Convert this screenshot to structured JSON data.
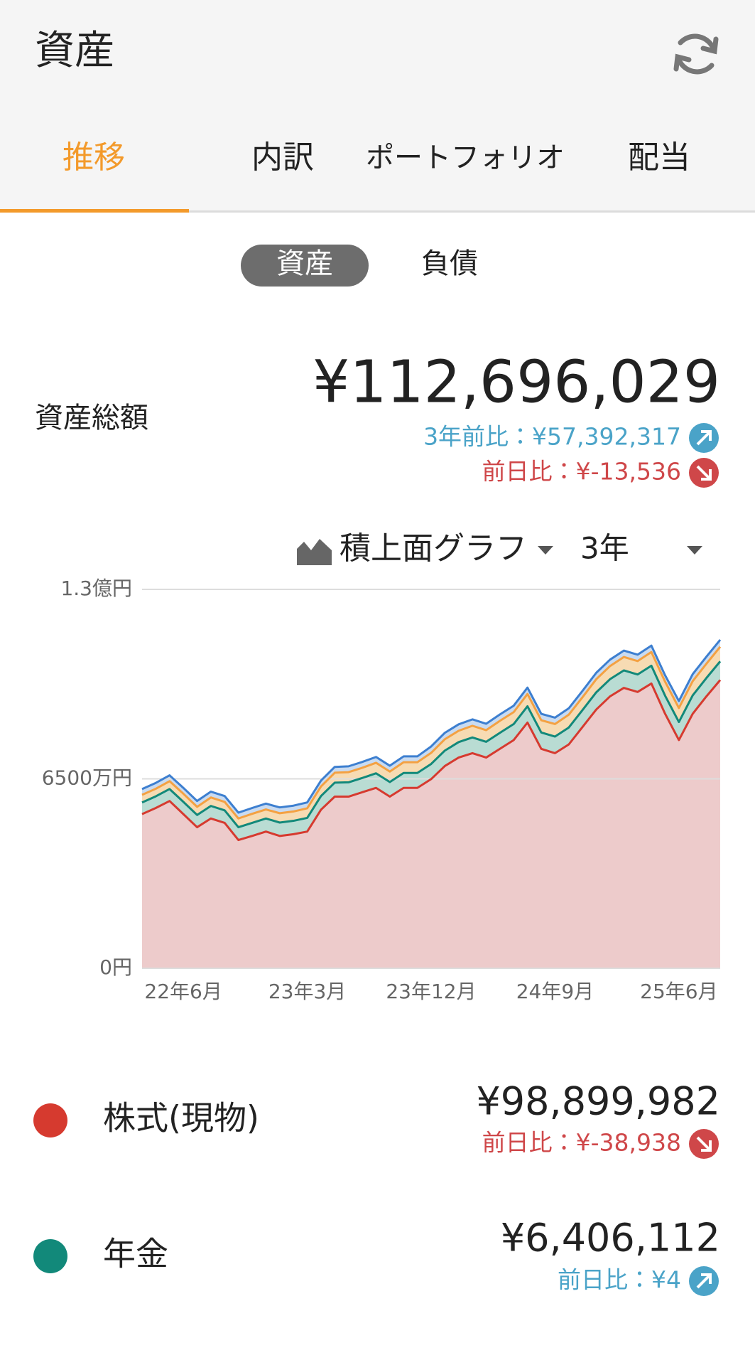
{
  "header": {
    "title": "資産"
  },
  "tabs": [
    "推移",
    "内訳",
    "ポートフォリオ",
    "配当"
  ],
  "toggle": [
    "資産",
    "負債"
  ],
  "total": {
    "label": "資産総額",
    "value": "¥112,696,029",
    "change_3y": "3年前比：¥57,392,317",
    "change_day": "前日比：¥-13,536"
  },
  "controls": {
    "chart_kind": "積上面グラフ",
    "period": "3年"
  },
  "chart_data": {
    "type": "stacked_area",
    "categories": [
      null,
      null,
      null,
      "22年6月",
      null,
      null,
      null,
      null,
      null,
      null,
      null,
      null,
      "23年3月",
      null,
      null,
      null,
      null,
      null,
      null,
      null,
      null,
      "23年12月",
      null,
      null,
      null,
      null,
      null,
      null,
      null,
      null,
      "24年9月",
      null,
      null,
      null,
      null,
      null,
      null,
      null,
      null,
      "25年6月",
      null,
      null,
      null
    ],
    "ylim": [
      0,
      130000000
    ],
    "yticks": [
      {
        "value": 0,
        "label": "0円"
      },
      {
        "value": 65000000,
        "label": "6500万円"
      },
      {
        "value": 130000000,
        "label": "1.3億円"
      }
    ],
    "grid": true,
    "series": [
      {
        "name": "株式(現物)",
        "color": "#d63a2f",
        "fill": "#edcbcb",
        "values": [
          52900000,
          55000000,
          57400000,
          52900000,
          48400000,
          51400000,
          49900000,
          44000000,
          45400000,
          46900000,
          45400000,
          46000000,
          46900000,
          54400000,
          58900000,
          58900000,
          60400000,
          61900000,
          58900000,
          61900000,
          61900000,
          64900000,
          69400000,
          72300000,
          73800000,
          72300000,
          75300000,
          78300000,
          84300000,
          75300000,
          73800000,
          76800000,
          82800000,
          88800000,
          93300000,
          96200000,
          94800000,
          97700000,
          87300000,
          78300000,
          87300000,
          93300000,
          98899982
        ]
      },
      {
        "name": "年金",
        "color": "#12897a",
        "fill": "#b9dcd3",
        "values": [
          4000000,
          4000000,
          4100000,
          4200000,
          4200000,
          4300000,
          4300000,
          4400000,
          4500000,
          4500000,
          4600000,
          4600000,
          4700000,
          4700000,
          4800000,
          4900000,
          4900000,
          5000000,
          5000000,
          5100000,
          5100000,
          5200000,
          5300000,
          5300000,
          5400000,
          5400000,
          5500000,
          5500000,
          5600000,
          5600000,
          5700000,
          5800000,
          5800000,
          5900000,
          5900000,
          6000000,
          6000000,
          6100000,
          6200000,
          6200000,
          6300000,
          6300000,
          6406112
        ]
      },
      {
        "color": "#f4a142",
        "fill": "#f7dbb3",
        "values": [
          2600000,
          2600000,
          2700000,
          2800000,
          2800000,
          2900000,
          2900000,
          3000000,
          3100000,
          3100000,
          3200000,
          3200000,
          3300000,
          3300000,
          3400000,
          3500000,
          3500000,
          3600000,
          3600000,
          3700000,
          3700000,
          3800000,
          3900000,
          3900000,
          4000000,
          4000000,
          4100000,
          4100000,
          4200000,
          4200000,
          4300000,
          4400000,
          4400000,
          4500000,
          4500000,
          4600000,
          4600000,
          4700000,
          4800000,
          4800000,
          4900000,
          4900000,
          5000000
        ]
      },
      {
        "color": "#3d7fd0",
        "fill": "#c9dbf1",
        "values": [
          2000000,
          2000000,
          2000000,
          2000000,
          2000000,
          2000000,
          2000000,
          2000000,
          2000000,
          2000000,
          2000000,
          2000000,
          2000000,
          2000000,
          2000000,
          2000000,
          2000000,
          2000000,
          2000000,
          2000000,
          2000000,
          2200000,
          2200000,
          2200000,
          2200000,
          2200000,
          2200000,
          2200000,
          2200000,
          2200000,
          2200000,
          2200000,
          2200000,
          2200000,
          2200000,
          2200000,
          2200000,
          2200000,
          2200000,
          2400000,
          2400000,
          2400000,
          2400000
        ]
      }
    ]
  },
  "legend": [
    {
      "value": "¥98,899,982",
      "change": "前日比：¥-38,938"
    },
    {
      "value": "¥6,406,112",
      "change": "前日比：¥4"
    }
  ]
}
